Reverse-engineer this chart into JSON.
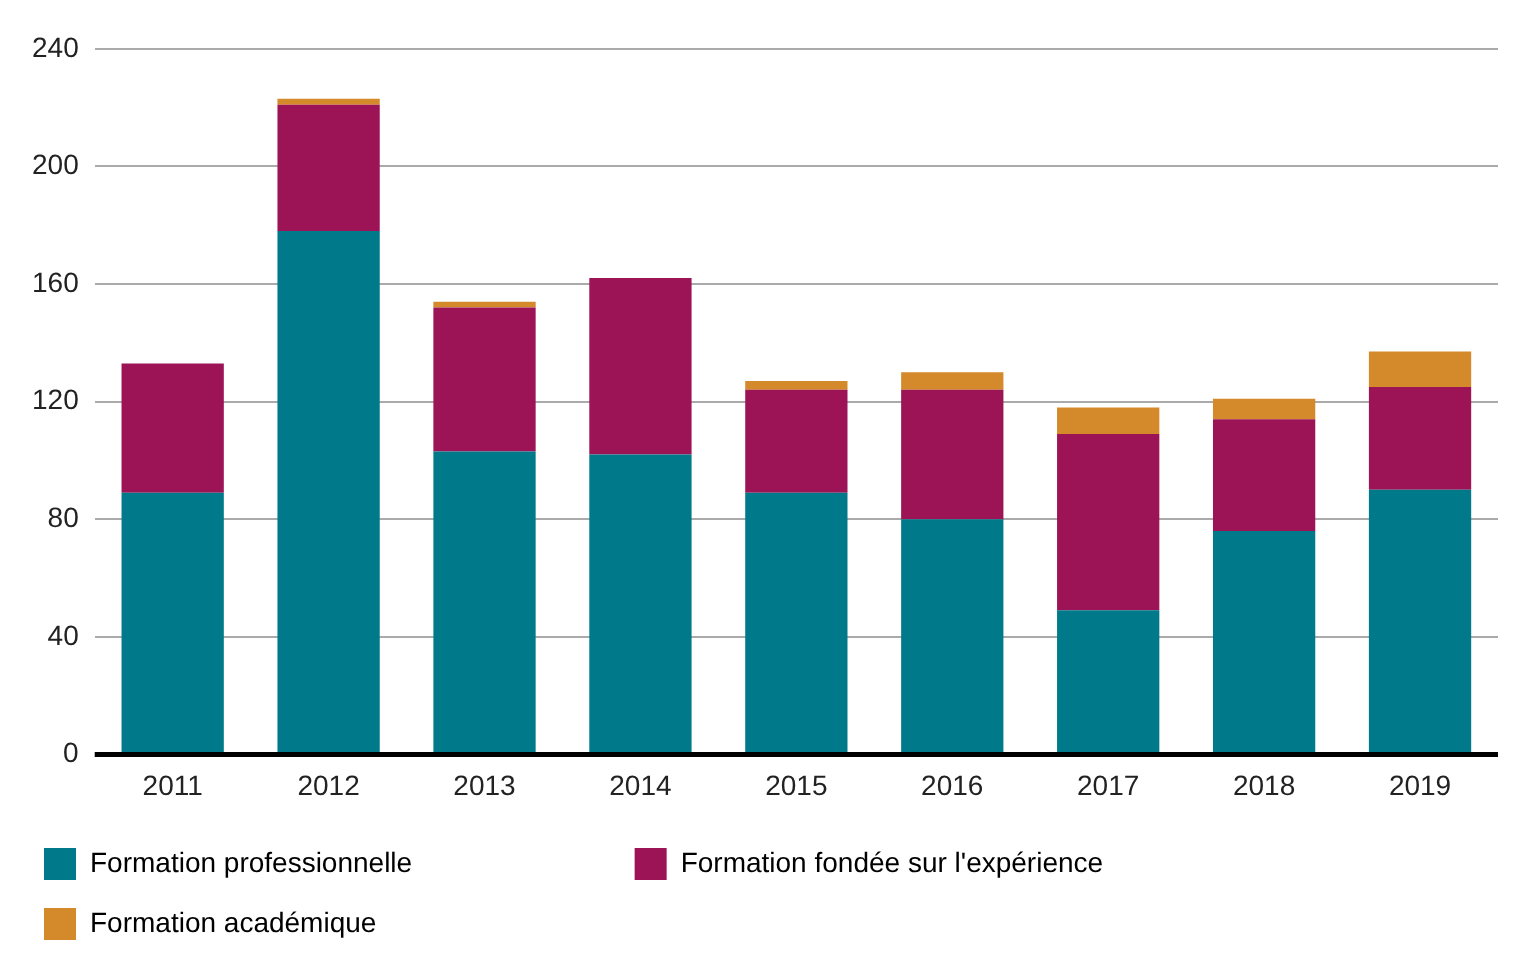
{
  "chart_data": {
    "type": "bar",
    "stacked": true,
    "categories": [
      "2011",
      "2012",
      "2013",
      "2014",
      "2015",
      "2016",
      "2017",
      "2018",
      "2019"
    ],
    "series": [
      {
        "name": "Formation professionnelle",
        "color": "#007a8a",
        "values": [
          89,
          178,
          103,
          102,
          89,
          80,
          49,
          76,
          90
        ]
      },
      {
        "name": "Formation fondée sur l'expérience",
        "color": "#9c1456",
        "values": [
          44,
          43,
          49,
          60,
          35,
          44,
          60,
          38,
          35
        ]
      },
      {
        "name": "Formation académique",
        "color": "#d4892a",
        "values": [
          0,
          2,
          2,
          0,
          3,
          6,
          9,
          7,
          12
        ]
      }
    ],
    "ylim": [
      0,
      240
    ],
    "yticks": [
      0,
      40,
      80,
      120,
      160,
      200,
      240
    ],
    "grid": "y",
    "legend": "bottom"
  }
}
